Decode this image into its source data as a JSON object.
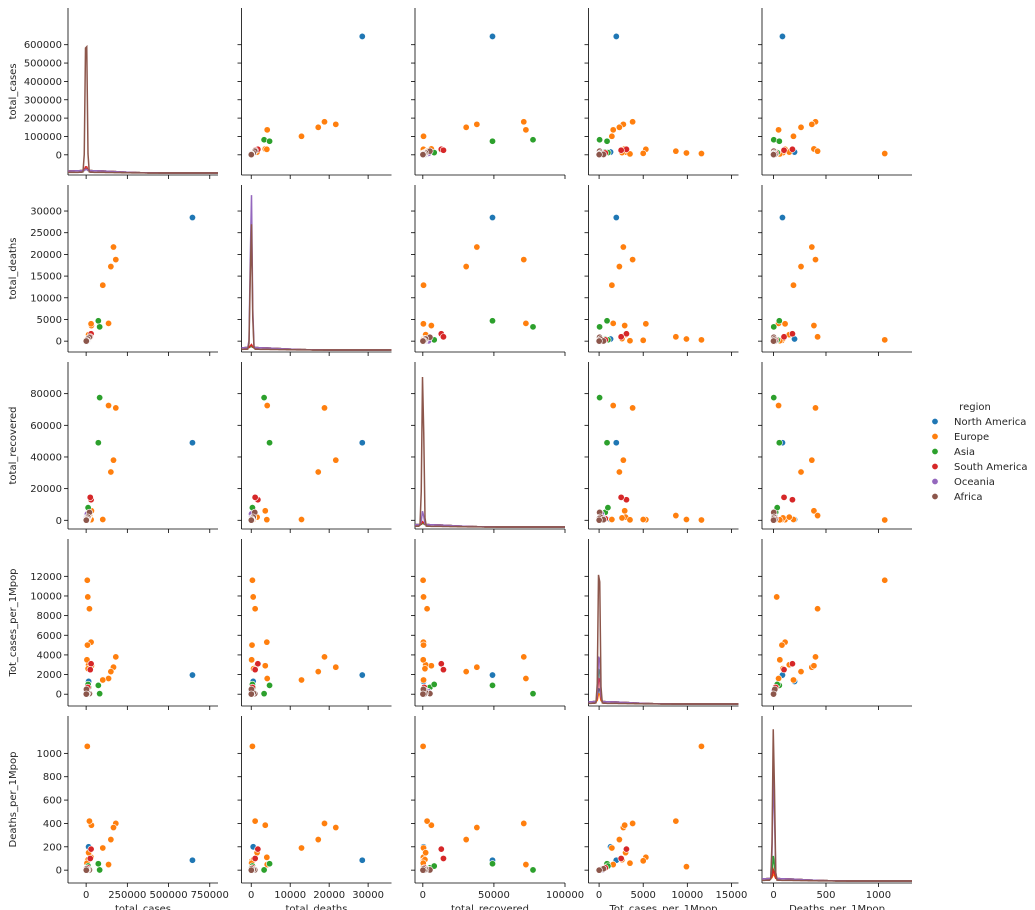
{
  "chart_data": {
    "type": "scatter",
    "variables": [
      "total_cases",
      "total_deaths",
      "total_recovered",
      "Tot_cases_per_1Mpop",
      "Deaths_per_1Mpop"
    ],
    "axis_ranges": {
      "total_cases": [
        -110000,
        800000
      ],
      "total_deaths": [
        -2500,
        36000
      ],
      "total_recovered": [
        -5500,
        100000
      ],
      "Tot_cases_per_1Mpop": [
        -1200,
        15800
      ],
      "Deaths_per_1Mpop": [
        -110,
        1320
      ]
    },
    "tick_values": {
      "total_cases": [
        0,
        100000,
        200000,
        300000,
        400000,
        500000,
        600000
      ],
      "total_deaths": [
        0,
        5000,
        10000,
        15000,
        20000,
        25000,
        30000
      ],
      "total_recovered": [
        0,
        20000,
        40000,
        60000,
        80000
      ],
      "Tot_cases_per_1Mpop": [
        0,
        2000,
        4000,
        6000,
        8000,
        10000,
        12000
      ],
      "Deaths_per_1Mpop": [
        0,
        200,
        400,
        600,
        800,
        1000
      ]
    },
    "x_tick_labels": {
      "total_cases": [
        "0",
        "250000",
        "500000",
        "750000"
      ],
      "total_deaths": [
        "0",
        "10000",
        "20000",
        "30000"
      ],
      "total_recovered": [
        "0",
        "50000",
        "100000"
      ],
      "Tot_cases_per_1Mpop": [
        "0",
        "5000",
        "10000",
        "15000"
      ],
      "Deaths_per_1Mpop": [
        "0",
        "500",
        "1000"
      ]
    },
    "x_tick_values": {
      "total_cases": [
        0,
        250000,
        500000,
        750000
      ],
      "total_deaths": [
        0,
        10000,
        20000,
        30000
      ],
      "total_recovered": [
        0,
        50000,
        100000
      ],
      "Tot_cases_per_1Mpop": [
        0,
        5000,
        10000,
        15000
      ],
      "Deaths_per_1Mpop": [
        0,
        500,
        1000
      ]
    },
    "diagonal": "kde",
    "legend": {
      "title": "region",
      "placement": "right",
      "entries": [
        "North America",
        "Europe",
        "Asia",
        "South America",
        "Oceania",
        "Africa"
      ]
    },
    "colors": {
      "North America": "#1f77b4",
      "Europe": "#ff7f0e",
      "Asia": "#2ca02c",
      "South America": "#d62728",
      "Oceania": "#9467bd",
      "Africa": "#8c564b"
    },
    "series": [
      {
        "name": "North America",
        "points": [
          [
            645000,
            28500,
            49000,
            1950,
            85
          ],
          [
            15000,
            500,
            500,
            1300,
            200
          ],
          [
            5000,
            200,
            200,
            300,
            12
          ]
        ]
      },
      {
        "name": "Europe",
        "points": [
          [
            180000,
            18800,
            71000,
            3800,
            400
          ],
          [
            166000,
            21700,
            38000,
            2750,
            365
          ],
          [
            150000,
            17200,
            30500,
            2300,
            262
          ],
          [
            136000,
            4100,
            72500,
            1600,
            48
          ],
          [
            101000,
            12900,
            500,
            1450,
            190
          ],
          [
            32000,
            3600,
            6000,
            2900,
            385
          ],
          [
            30000,
            4000,
            400,
            5300,
            110
          ],
          [
            20000,
            1000,
            3000,
            8700,
            420
          ],
          [
            7000,
            300,
            200,
            11600,
            1060
          ],
          [
            10000,
            500,
            500,
            9900,
            30
          ],
          [
            8000,
            200,
            500,
            5000,
            80
          ],
          [
            15000,
            1500,
            2000,
            3000,
            150
          ],
          [
            12000,
            600,
            1500,
            2600,
            90
          ],
          [
            5000,
            100,
            300,
            3500,
            60
          ]
        ]
      },
      {
        "name": "Asia",
        "points": [
          [
            82000,
            3300,
            77500,
            57,
            2
          ],
          [
            74000,
            4700,
            49000,
            900,
            55
          ],
          [
            15000,
            500,
            5000,
            700,
            20
          ],
          [
            12000,
            300,
            8000,
            1000,
            35
          ],
          [
            5000,
            100,
            3000,
            300,
            10
          ],
          [
            3000,
            60,
            1000,
            100,
            3
          ]
        ]
      },
      {
        "name": "South America",
        "points": [
          [
            30000,
            1700,
            13000,
            3100,
            180
          ],
          [
            25000,
            1000,
            14500,
            2500,
            100
          ],
          [
            10000,
            300,
            1000,
            700,
            20
          ],
          [
            5000,
            100,
            500,
            300,
            8
          ]
        ]
      },
      {
        "name": "Oceania",
        "points": [
          [
            8000,
            80,
            4000,
            250,
            3
          ],
          [
            2000,
            20,
            1500,
            400,
            4
          ]
        ]
      },
      {
        "name": "Africa",
        "points": [
          [
            20000,
            900,
            5000,
            60,
            2
          ],
          [
            10000,
            500,
            2000,
            150,
            5
          ],
          [
            5000,
            100,
            1000,
            20,
            1
          ],
          [
            2000,
            50,
            400,
            500,
            12
          ],
          [
            1000,
            20,
            100,
            10,
            0
          ]
        ]
      }
    ],
    "kde_peak": {
      "total_cases": {
        "Africa": 1.0,
        "South America": 0.03,
        "Asia": 0.015,
        "North America": 0.01,
        "Europe": 0.012,
        "Oceania": 0.01
      },
      "total_deaths": {
        "Oceania": 1.0,
        "Africa": 0.82,
        "South America": 0.02,
        "Asia": 0.012,
        "Europe": 0.01,
        "North America": 0.008
      },
      "total_recovered": {
        "Africa": 1.0,
        "Oceania": 0.09,
        "South America": 0.02,
        "Asia": 0.012,
        "Europe": 0.01,
        "North America": 0.008
      },
      "Tot_cases_per_1Mpop": {
        "Africa": 1.0,
        "Oceania": 0.35,
        "South America": 0.18,
        "Asia": 0.25,
        "Europe": 0.06,
        "North America": 0.1
      },
      "Deaths_per_1Mpop": {
        "Africa": 1.0,
        "Oceania": 0.7,
        "Asia": 0.15,
        "South America": 0.06,
        "Europe": 0.03,
        "North America": 0.05
      }
    }
  }
}
